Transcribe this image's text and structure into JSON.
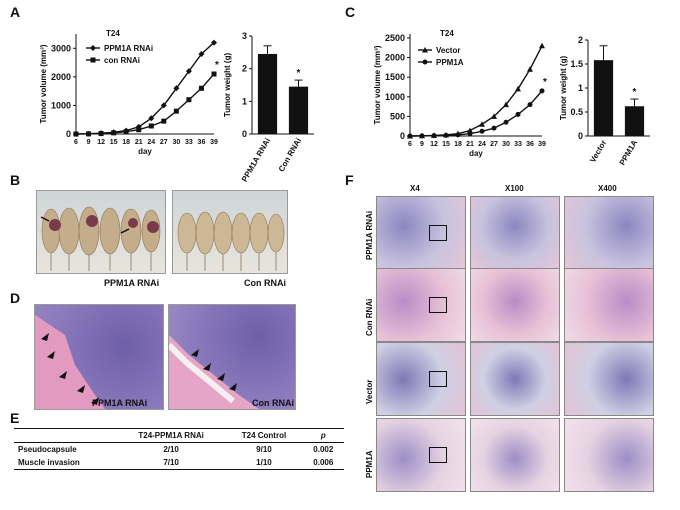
{
  "panels": {
    "A": "A",
    "B": "B",
    "C": "C",
    "D": "D",
    "E": "E",
    "F": "F"
  },
  "chart_data": [
    {
      "type": "line",
      "title": "T24",
      "xlabel": "day",
      "ylabel": "Tumor volume (mm³)",
      "x": [
        6,
        9,
        12,
        15,
        18,
        21,
        24,
        27,
        30,
        33,
        36,
        39
      ],
      "ylim": [
        0,
        3500
      ],
      "yticks": [
        0,
        1000,
        2000,
        3000
      ],
      "series": [
        {
          "name": "PPM1A RNAi",
          "marker": "diamond",
          "values": [
            0,
            10,
            30,
            60,
            120,
            250,
            550,
            1000,
            1600,
            2200,
            2800,
            3200
          ]
        },
        {
          "name": "con RNAi",
          "marker": "square",
          "values": [
            0,
            5,
            15,
            40,
            80,
            150,
            280,
            450,
            800,
            1200,
            1600,
            2100
          ]
        }
      ],
      "annotation": "*"
    },
    {
      "type": "bar",
      "ylabel": "Tumor weight (g)",
      "categories": [
        "PPM1A RNAi",
        "Con RNAi"
      ],
      "values": [
        2.45,
        1.45
      ],
      "errors": [
        0.25,
        0.2
      ],
      "ylim": [
        0,
        3
      ],
      "yticks": [
        0,
        1,
        2,
        3
      ],
      "annotation": "*"
    },
    {
      "type": "line",
      "title": "T24",
      "xlabel": "day",
      "ylabel": "Tumor volume (mm³)",
      "x": [
        6,
        9,
        12,
        15,
        18,
        21,
        24,
        27,
        30,
        33,
        36,
        39
      ],
      "ylim": [
        0,
        2600
      ],
      "yticks": [
        0,
        500,
        1000,
        1500,
        2000,
        2500
      ],
      "series": [
        {
          "name": "Vector",
          "marker": "triangle",
          "values": [
            0,
            5,
            15,
            30,
            60,
            140,
            300,
            500,
            800,
            1200,
            1700,
            2300
          ]
        },
        {
          "name": "PPM1A",
          "marker": "circle",
          "values": [
            0,
            3,
            8,
            15,
            30,
            60,
            120,
            200,
            350,
            550,
            800,
            1150
          ]
        }
      ],
      "annotation": "*"
    },
    {
      "type": "bar",
      "ylabel": "Tumor weight (g)",
      "categories": [
        "Vector",
        "PPM1A"
      ],
      "values": [
        1.58,
        0.62
      ],
      "errors": [
        0.3,
        0.15
      ],
      "ylim": [
        0,
        2
      ],
      "yticks": [
        0,
        0.5,
        1,
        1.5,
        2
      ],
      "annotation": "*"
    }
  ],
  "photoB": {
    "left_label": "PPM1A RNAi",
    "right_label": "Con RNAi"
  },
  "photoD": {
    "left_label": "PPM1A RNAi",
    "right_label": "Con RNAi"
  },
  "tableE": {
    "headers": [
      "",
      "T24-PPM1A RNAi",
      "T24 Control",
      "p"
    ],
    "rows": [
      [
        "Pseudocapsule",
        "2/10",
        "9/10",
        "0.002"
      ],
      [
        "Muscle invasion",
        "7/10",
        "1/10",
        "0.006"
      ]
    ]
  },
  "gridF": {
    "columns": [
      "X4",
      "X100",
      "X400"
    ],
    "rows": [
      "PPM1A RNAi",
      "Con RNAi",
      "Vector",
      "PPM1A"
    ]
  },
  "colors": {
    "line": "#111111",
    "bar": "#111111",
    "tissue_pink": "#d98bb8",
    "tissue_purple": "#7a6bb0",
    "mouse_skin": "#c9b79a"
  }
}
